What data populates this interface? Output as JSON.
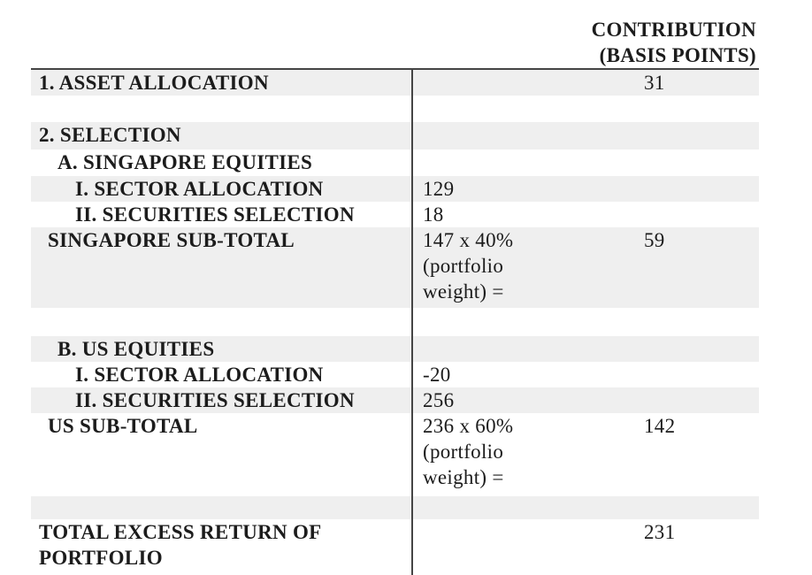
{
  "table": {
    "header": {
      "contribution_label": "CONTRIBUTION\n(BASIS POINTS)"
    },
    "colors": {
      "stripe": "#efefef",
      "rule": "#454545",
      "text": "#1c1c1c"
    },
    "rows": [
      {
        "label": "1. ASSET ALLOCATION",
        "calculation": "",
        "contribution": "31"
      },
      {
        "label": "",
        "calculation": "",
        "contribution": ""
      },
      {
        "label": "2. SELECTION",
        "calculation": "",
        "contribution": ""
      },
      {
        "label": "A. SINGAPORE EQUITIES",
        "calculation": "",
        "contribution": ""
      },
      {
        "label": "I. SECTOR ALLOCATION",
        "calculation": "129",
        "contribution": ""
      },
      {
        "label": "II. SECURITIES SELECTION",
        "calculation": "18",
        "contribution": ""
      },
      {
        "label": "SINGAPORE SUB-TOTAL",
        "calculation": "147 x 40%\n(portfolio\nweight) =",
        "contribution": "59"
      },
      {
        "label": "",
        "calculation": "",
        "contribution": ""
      },
      {
        "label": "B. US EQUITIES",
        "calculation": "",
        "contribution": ""
      },
      {
        "label": "I. SECTOR ALLOCATION",
        "calculation": "-20",
        "contribution": ""
      },
      {
        "label": "II. SECURITIES SELECTION",
        "calculation": "256",
        "contribution": ""
      },
      {
        "label": "US SUB-TOTAL",
        "calculation": "236 x 60%\n(portfolio\nweight) =",
        "contribution": "142"
      },
      {
        "label": "",
        "calculation": "",
        "contribution": ""
      },
      {
        "label": "TOTAL EXCESS RETURN OF\nPORTFOLIO",
        "calculation": "",
        "contribution": "231"
      }
    ]
  }
}
